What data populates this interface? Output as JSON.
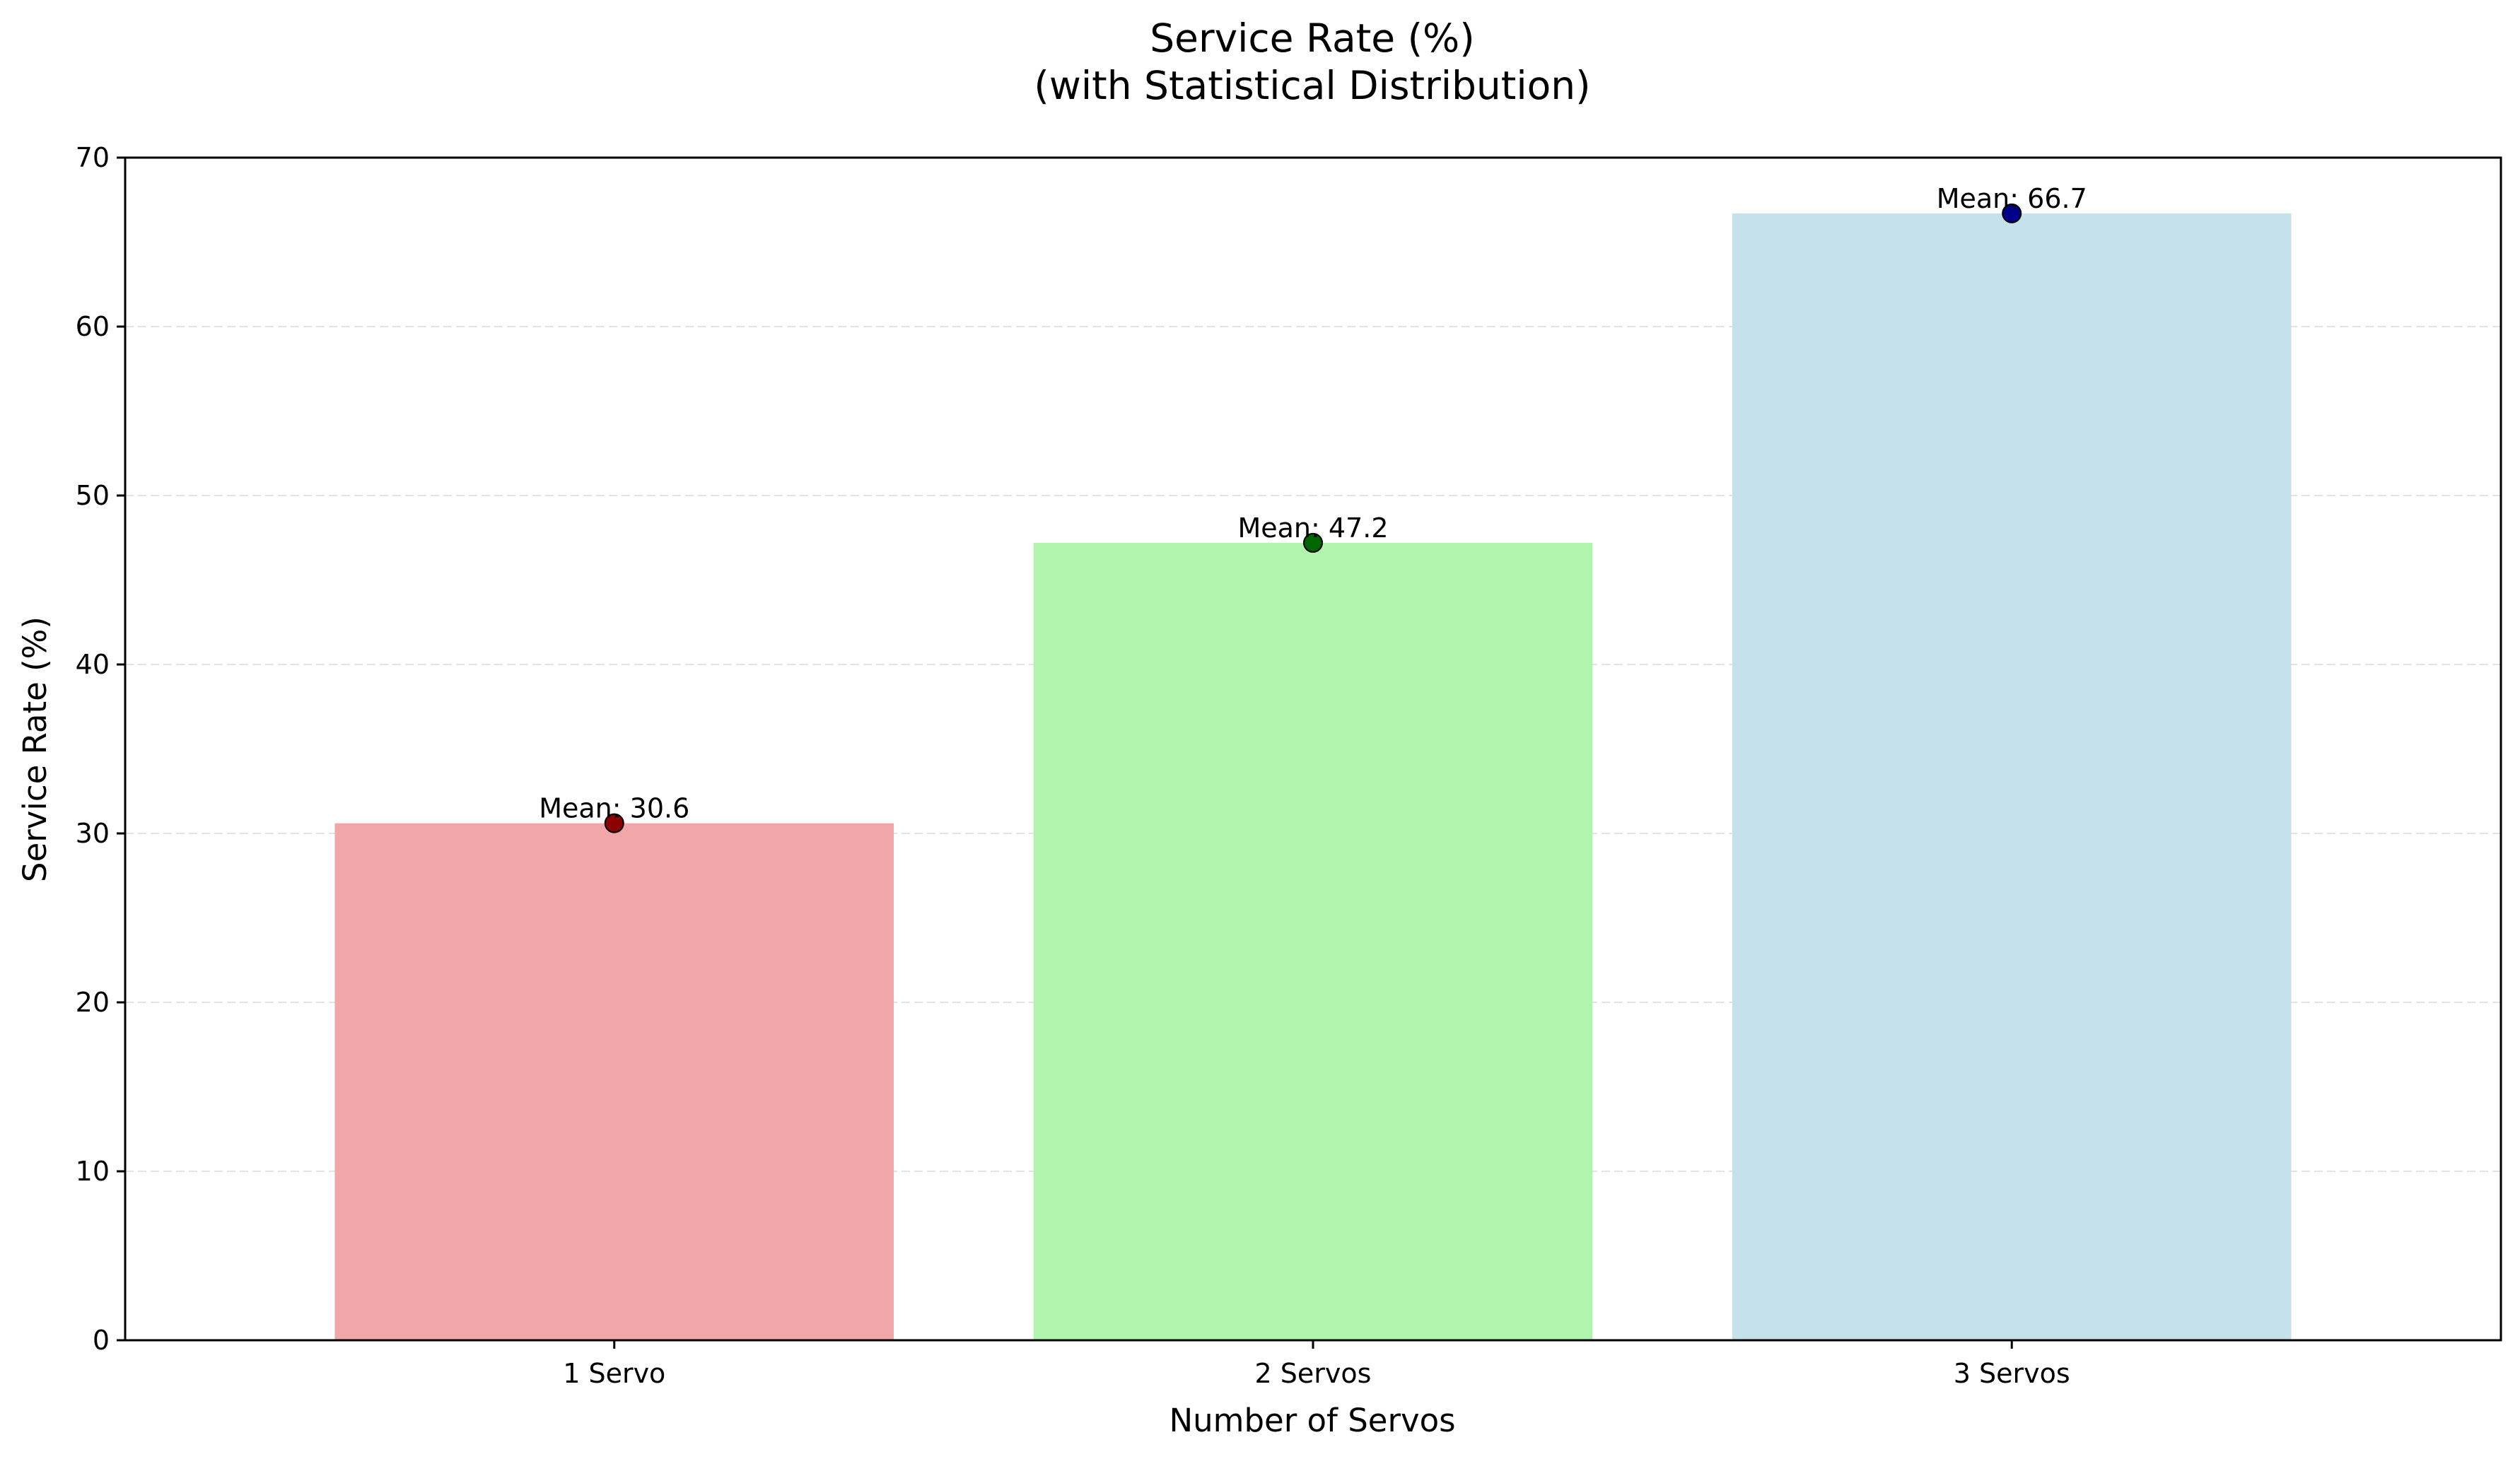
{
  "chart_data": {
    "type": "bar",
    "title": "Service Rate (%)",
    "subtitle": "(with Statistical Distribution)",
    "xlabel": "Number of Servos",
    "ylabel": "Service Rate (%)",
    "categories": [
      "1 Servo",
      "2 Servos",
      "3 Servos"
    ],
    "values": [
      30.6,
      47.2,
      66.7
    ],
    "data_labels": [
      "Mean: 30.6",
      "Mean: 47.2",
      "Mean: 66.7"
    ],
    "bar_colors": [
      "#f1a7a8",
      "#b1f4ae",
      "#c5e1ea"
    ],
    "marker_colors": [
      "#8b0000",
      "#006400",
      "#00008b"
    ],
    "ylim": [
      0,
      70
    ],
    "yticks": [
      0,
      10,
      20,
      30,
      40,
      50,
      60,
      70
    ],
    "grid": "y-dashed",
    "legend": "none"
  }
}
